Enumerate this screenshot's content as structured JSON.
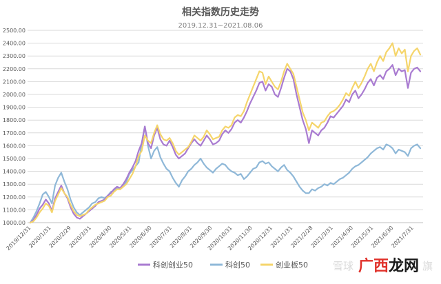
{
  "chart_data": {
    "type": "line",
    "title": "相关指数历史走势",
    "subtitle": "2019.12.31~2021.08.06",
    "ylim": [
      1000,
      2500
    ],
    "yticks": [
      "1000.00",
      "1100.00",
      "1200.00",
      "1300.00",
      "1400.00",
      "1500.00",
      "1600.00",
      "1700.00",
      "1800.00",
      "1900.00",
      "2000.00",
      "2100.00",
      "2200.00",
      "2300.00",
      "2400.00",
      "2500.00"
    ],
    "xticks": [
      "2019/12/31",
      "2020/1/31",
      "2020/2/29",
      "2020/3/31",
      "2020/4/30",
      "2020/5/31",
      "2020/6/30",
      "2020/7/31",
      "2020/8/31",
      "2020/9/30",
      "2020/10/31",
      "2020/11/30",
      "2020/12/31",
      "2021/1/31",
      "2021/2/28",
      "2021/3/31",
      "2021/4/30",
      "2021/5/31",
      "2021/6/30",
      "2021/7/31"
    ],
    "grid": true,
    "legend_position": "bottom",
    "series": [
      {
        "name": "科创创业50",
        "color": "#a97bd1",
        "values": [
          1000,
          1020,
          1060,
          1110,
          1140,
          1180,
          1150,
          1090,
          1190,
          1240,
          1290,
          1230,
          1190,
          1120,
          1070,
          1040,
          1030,
          1050,
          1070,
          1090,
          1110,
          1130,
          1160,
          1170,
          1180,
          1210,
          1230,
          1260,
          1280,
          1270,
          1300,
          1340,
          1390,
          1430,
          1480,
          1560,
          1620,
          1750,
          1620,
          1580,
          1680,
          1740,
          1650,
          1610,
          1600,
          1640,
          1590,
          1530,
          1500,
          1520,
          1540,
          1580,
          1620,
          1650,
          1620,
          1600,
          1640,
          1680,
          1650,
          1610,
          1620,
          1640,
          1690,
          1720,
          1700,
          1730,
          1780,
          1800,
          1780,
          1820,
          1870,
          1930,
          1980,
          2030,
          2090,
          2100,
          2030,
          2080,
          2060,
          2000,
          1980,
          2050,
          2130,
          2200,
          2180,
          2120,
          2000,
          1900,
          1800,
          1730,
          1620,
          1720,
          1700,
          1680,
          1720,
          1740,
          1780,
          1830,
          1820,
          1850,
          1880,
          1910,
          1960,
          1940,
          2000,
          2030,
          1970,
          2000,
          2040,
          2090,
          2120,
          2070,
          2130,
          2150,
          2120,
          2180,
          2200,
          2230,
          2150,
          2200,
          2180,
          2190,
          2050,
          2170,
          2200,
          2210,
          2180
        ]
      },
      {
        "name": "科创50",
        "color": "#8fb8d8",
        "values": [
          1000,
          1040,
          1090,
          1150,
          1220,
          1240,
          1200,
          1150,
          1290,
          1350,
          1390,
          1320,
          1260,
          1180,
          1120,
          1080,
          1060,
          1080,
          1100,
          1120,
          1150,
          1160,
          1190,
          1200,
          1190,
          1210,
          1240,
          1250,
          1270,
          1260,
          1280,
          1320,
          1380,
          1410,
          1440,
          1470,
          1620,
          1750,
          1600,
          1500,
          1560,
          1590,
          1510,
          1460,
          1420,
          1400,
          1350,
          1310,
          1280,
          1330,
          1360,
          1400,
          1420,
          1450,
          1470,
          1500,
          1460,
          1430,
          1410,
          1390,
          1420,
          1440,
          1460,
          1450,
          1420,
          1400,
          1390,
          1370,
          1380,
          1340,
          1360,
          1390,
          1420,
          1430,
          1470,
          1480,
          1460,
          1470,
          1440,
          1420,
          1400,
          1430,
          1450,
          1410,
          1390,
          1360,
          1320,
          1280,
          1250,
          1230,
          1230,
          1260,
          1250,
          1270,
          1280,
          1300,
          1290,
          1310,
          1300,
          1320,
          1340,
          1350,
          1370,
          1390,
          1420,
          1440,
          1450,
          1470,
          1490,
          1510,
          1540,
          1560,
          1580,
          1590,
          1570,
          1610,
          1600,
          1580,
          1540,
          1570,
          1560,
          1550,
          1520,
          1580,
          1600,
          1610,
          1580
        ]
      },
      {
        "name": "创业板50",
        "color": "#f5d56b",
        "values": [
          1000,
          1010,
          1040,
          1080,
          1110,
          1150,
          1130,
          1080,
          1170,
          1220,
          1270,
          1230,
          1200,
          1140,
          1090,
          1060,
          1050,
          1060,
          1070,
          1100,
          1120,
          1140,
          1150,
          1160,
          1170,
          1200,
          1210,
          1240,
          1260,
          1260,
          1280,
          1300,
          1340,
          1380,
          1440,
          1520,
          1560,
          1680,
          1640,
          1620,
          1700,
          1760,
          1690,
          1650,
          1640,
          1660,
          1620,
          1560,
          1530,
          1550,
          1570,
          1590,
          1630,
          1680,
          1660,
          1640,
          1670,
          1720,
          1690,
          1650,
          1660,
          1670,
          1720,
          1750,
          1740,
          1760,
          1820,
          1840,
          1830,
          1870,
          1940,
          2000,
          2060,
          2120,
          2180,
          2170,
          2080,
          2140,
          2100,
          2060,
          2040,
          2100,
          2180,
          2240,
          2200,
          2160,
          2060,
          1960,
          1860,
          1800,
          1720,
          1780,
          1760,
          1740,
          1780,
          1790,
          1830,
          1860,
          1870,
          1890,
          1920,
          1960,
          2010,
          1990,
          2050,
          2100,
          2050,
          2090,
          2140,
          2200,
          2240,
          2180,
          2250,
          2300,
          2260,
          2330,
          2360,
          2400,
          2300,
          2360,
          2320,
          2350,
          2180,
          2300,
          2340,
          2360,
          2310
        ]
      }
    ]
  },
  "watermark": {
    "brand": "雪球",
    "site": "广西龙网",
    "suffix": "旗"
  }
}
